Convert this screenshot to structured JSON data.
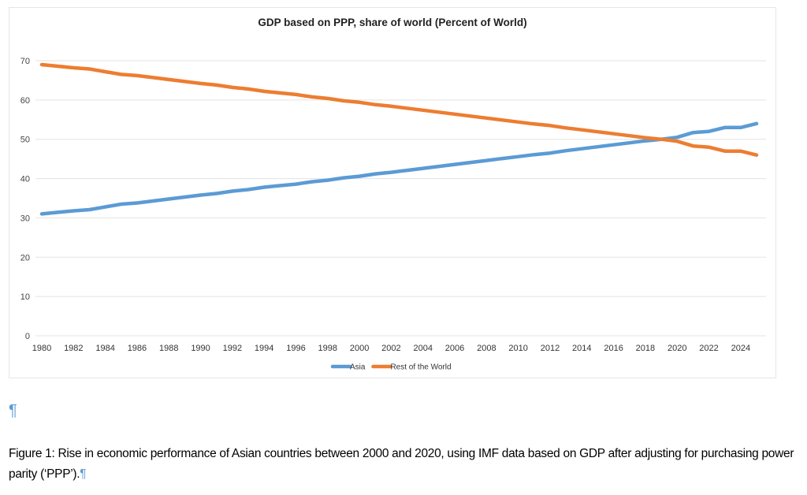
{
  "chart_data": {
    "type": "line",
    "title": "GDP based on PPP, share of world (Percent of World)",
    "xlabel": "",
    "ylabel": "",
    "ylim": [
      0,
      70
    ],
    "yticks": [
      0,
      10,
      20,
      30,
      40,
      50,
      60,
      70
    ],
    "xtick_labels": [
      "1980",
      "1982",
      "1984",
      "1986",
      "1988",
      "1990",
      "1992",
      "1994",
      "1996",
      "1998",
      "2000",
      "2002",
      "2004",
      "2006",
      "2008",
      "2010",
      "2012",
      "2014",
      "2016",
      "2018",
      "2020",
      "2022",
      "2024"
    ],
    "grid": true,
    "legend_position": "bottom",
    "x": [
      1980,
      1981,
      1982,
      1983,
      1984,
      1985,
      1986,
      1987,
      1988,
      1989,
      1990,
      1991,
      1992,
      1993,
      1994,
      1995,
      1996,
      1997,
      1998,
      1999,
      2000,
      2001,
      2002,
      2003,
      2004,
      2005,
      2006,
      2007,
      2008,
      2009,
      2010,
      2011,
      2012,
      2013,
      2014,
      2015,
      2016,
      2017,
      2018,
      2019,
      2020,
      2021,
      2022,
      2023,
      2024,
      2025
    ],
    "series": [
      {
        "name": "Asia",
        "color": "#5b9bd5",
        "values": [
          31.0,
          31.4,
          31.8,
          32.1,
          32.8,
          33.5,
          33.8,
          34.3,
          34.8,
          35.3,
          35.8,
          36.2,
          36.8,
          37.2,
          37.8,
          38.2,
          38.6,
          39.2,
          39.6,
          40.2,
          40.6,
          41.2,
          41.6,
          42.1,
          42.6,
          43.1,
          43.6,
          44.1,
          44.6,
          45.1,
          45.6,
          46.1,
          46.5,
          47.1,
          47.6,
          48.1,
          48.6,
          49.1,
          49.6,
          50.0,
          50.5,
          51.7,
          52.0,
          53.0,
          53.0,
          54.0
        ]
      },
      {
        "name": "Rest of the World",
        "color": "#ed7d31",
        "values": [
          69.0,
          68.6,
          68.2,
          67.9,
          67.2,
          66.5,
          66.2,
          65.7,
          65.2,
          64.7,
          64.2,
          63.8,
          63.2,
          62.8,
          62.2,
          61.8,
          61.4,
          60.8,
          60.4,
          59.8,
          59.4,
          58.8,
          58.4,
          57.9,
          57.4,
          56.9,
          56.4,
          55.9,
          55.4,
          54.9,
          54.4,
          53.9,
          53.5,
          52.9,
          52.4,
          51.9,
          51.4,
          50.9,
          50.4,
          50.0,
          49.5,
          48.3,
          48.0,
          47.0,
          47.0,
          46.0
        ]
      }
    ]
  },
  "document": {
    "empty_paragraph_mark": "¶",
    "caption": "Figure 1: Rise in economic performance of Asian countries between 2000 and 2020, using IMF data based on GDP after adjusting for purchasing power parity (‘PPP’).",
    "caption_mark": "¶"
  }
}
